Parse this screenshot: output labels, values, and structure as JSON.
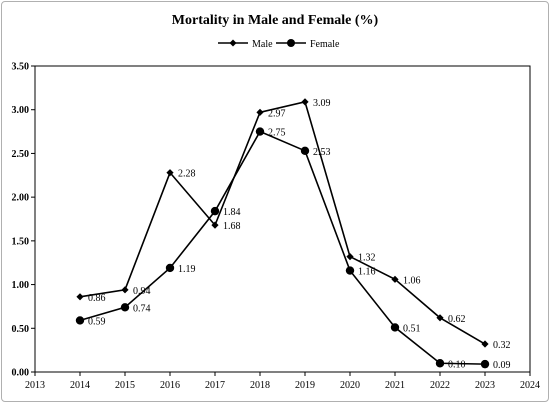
{
  "chart_data": {
    "type": "line",
    "title": "Mortality in Male and Female (%)",
    "xlabel": "",
    "ylabel": "",
    "xlim": [
      2013,
      2024
    ],
    "ylim": [
      0,
      3.5
    ],
    "x_ticks": [
      "2013",
      "2014",
      "2015",
      "2016",
      "2017",
      "2018",
      "2019",
      "2020",
      "2021",
      "2022",
      "2023",
      "2024"
    ],
    "y_ticks": [
      "0.00",
      "0.50",
      "1.00",
      "1.50",
      "2.00",
      "2.50",
      "3.00",
      "3.50"
    ],
    "grid": false,
    "legend_position": "top",
    "x": [
      2014,
      2015,
      2016,
      2017,
      2018,
      2019,
      2020,
      2021,
      2022,
      2023
    ],
    "series": [
      {
        "name": "Male",
        "marker": "diamond",
        "color": "#000000",
        "values": [
          0.86,
          0.94,
          2.28,
          1.68,
          2.97,
          3.09,
          1.32,
          1.06,
          0.62,
          0.32
        ],
        "labels": [
          "0.86",
          "0.94",
          "2.28",
          "1.68",
          "2.97",
          "3.09",
          "1.32",
          "1.06",
          "0.62",
          "0.32"
        ]
      },
      {
        "name": "Female",
        "marker": "circle",
        "color": "#000000",
        "values": [
          0.59,
          0.74,
          1.19,
          1.84,
          2.75,
          2.53,
          1.16,
          0.51,
          0.1,
          0.09
        ],
        "labels": [
          "0.59",
          "0.74",
          "1.19",
          "1.84",
          "2.75",
          "2.53",
          "1.16",
          "0.51",
          "0.10",
          "0.09"
        ]
      }
    ]
  }
}
